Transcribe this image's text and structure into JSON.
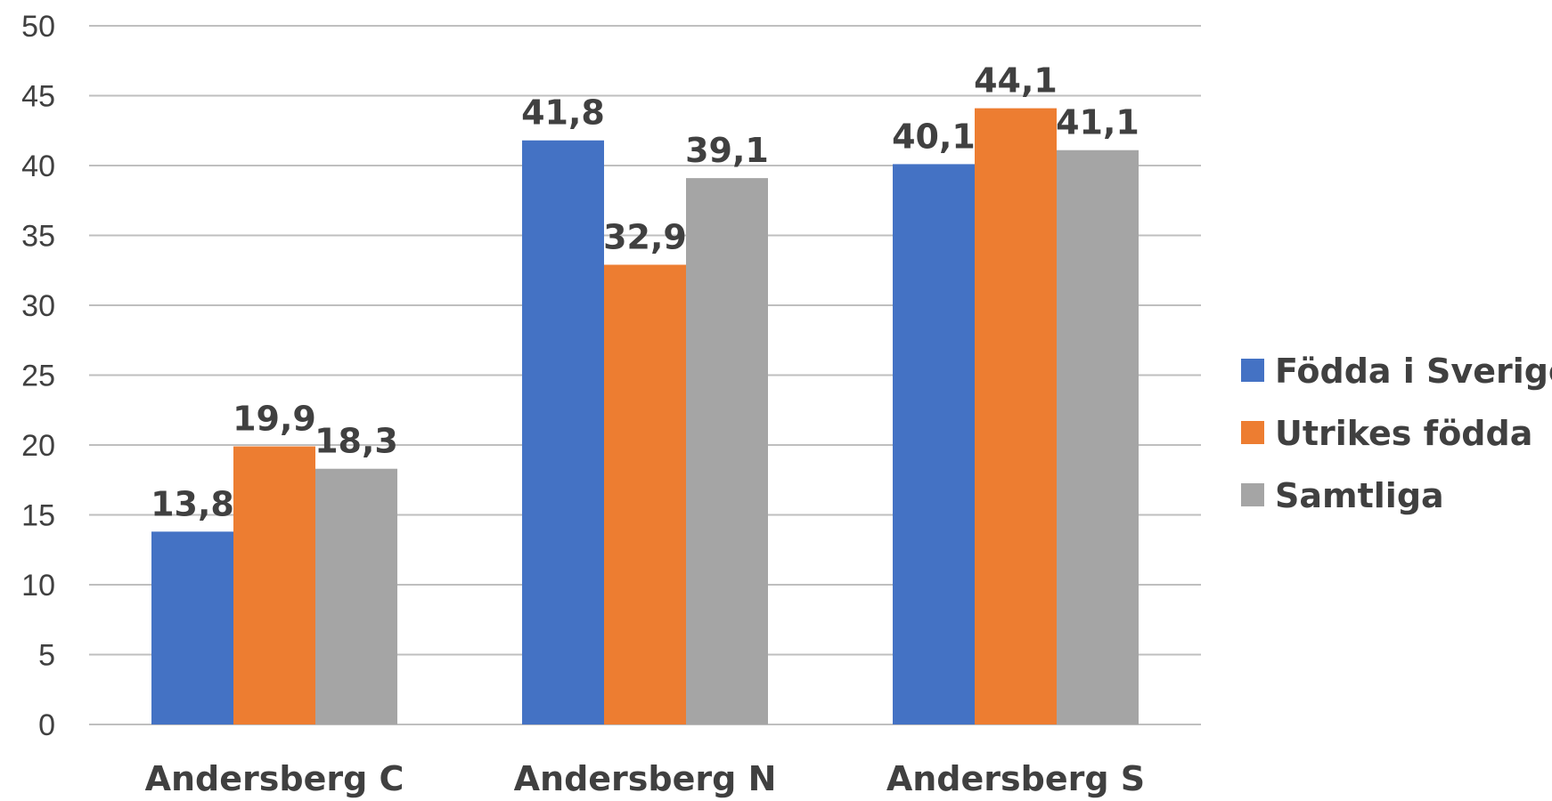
{
  "chart_data": {
    "type": "bar",
    "categories": [
      "Andersberg C",
      "Andersberg N",
      "Andersberg S"
    ],
    "series": [
      {
        "name": "Födda i Sverige",
        "color": "#4472c4",
        "values": [
          13.8,
          41.8,
          40.1
        ],
        "labels": [
          "13,8",
          "41,8",
          "40,1"
        ]
      },
      {
        "name": "Utrikes födda",
        "color": "#ed7d31",
        "values": [
          19.9,
          32.9,
          44.1
        ],
        "labels": [
          "19,9",
          "32,9",
          "44,1"
        ]
      },
      {
        "name": "Samtliga",
        "color": "#a5a5a5",
        "values": [
          18.3,
          39.1,
          41.1
        ],
        "labels": [
          "18,3",
          "39,1",
          "41,1"
        ]
      }
    ],
    "yticks": [
      "0",
      "5",
      "10",
      "15",
      "20",
      "25",
      "30",
      "35",
      "40",
      "45",
      "50"
    ],
    "ylim": [
      0,
      50
    ],
    "grid": true,
    "legend": "right"
  }
}
